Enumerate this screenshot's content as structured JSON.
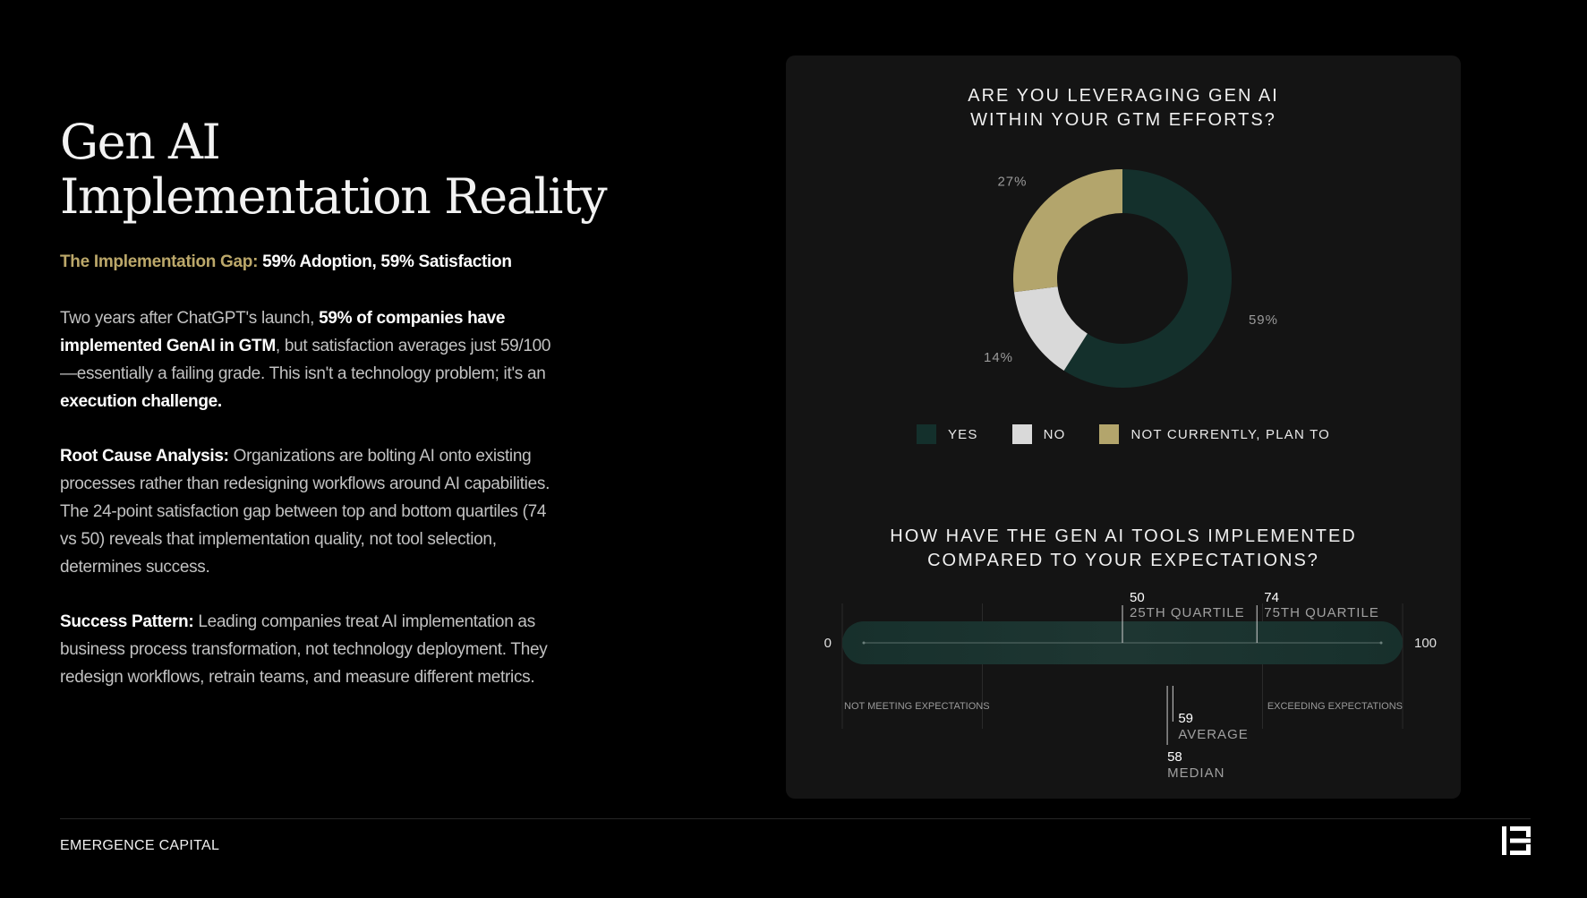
{
  "title": {
    "line1": "Gen AI",
    "line2": "Implementation Reality"
  },
  "subhead": {
    "label": "The Implementation Gap:",
    "text": "59% Adoption, 59% Satisfaction"
  },
  "para1": {
    "t1": "Two years after ChatGPT's launch, ",
    "b1": "59% of companies have implemented GenAI in GTM",
    "t2": ", but satisfaction averages just 59/100—essentially a failing grade. This isn't a technology problem; it's an ",
    "b2": "execution challenge."
  },
  "para2": {
    "label": "Root Cause Analysis:",
    "text": " Organizations are bolting AI onto existing processes rather than redesigning workflows around AI capabilities. The 24-point satisfaction gap between top and bottom quartiles (74 vs 50) reveals that implementation quality, not tool selection, determines success."
  },
  "para3": {
    "label": "Success Pattern:",
    "text": " Leading companies treat AI implementation as business process transformation, not technology deployment. They redesign workflows, retrain teams, and measure different metrics."
  },
  "footer": {
    "brand": "EMERGENCE CAPITAL"
  },
  "colors": {
    "yes": "#14302c",
    "no": "#d9d9d9",
    "plan": "#b3a56c",
    "gold_text": "#bca86a",
    "panel": "#141414"
  },
  "chart_data": [
    {
      "type": "pie",
      "title": [
        "ARE YOU LEVERAGING GEN AI",
        "WITHIN YOUR GTM EFFORTS?"
      ],
      "categories": [
        "YES",
        "NO",
        "NOT CURRENTLY, PLAN TO"
      ],
      "values": [
        59,
        14,
        27
      ],
      "data_labels": [
        "59%",
        "14%",
        "27%"
      ],
      "legend": "bottom"
    },
    {
      "type": "scatter",
      "title": [
        "HOW HAVE THE GEN AI TOOLS IMPLEMENTED",
        "COMPARED TO YOUR EXPECTATIONS?"
      ],
      "xlim": [
        0,
        100
      ],
      "scale_labels": [
        "0",
        "100"
      ],
      "zone_labels": [
        "NOT  MEETING EXPECTATIONS",
        "EXCEEDING EXPECTATIONS"
      ],
      "markers": [
        {
          "value": 50,
          "value_label": "50",
          "label": "25TH QUARTILE",
          "side": "top"
        },
        {
          "value": 74,
          "value_label": "74",
          "label": "75TH QUARTILE",
          "side": "top"
        },
        {
          "value": 59,
          "value_label": "59",
          "label": "AVERAGE",
          "side": "bottom"
        },
        {
          "value": 58,
          "value_label": "58",
          "label": "MEDIAN",
          "side": "bottom"
        }
      ]
    }
  ]
}
